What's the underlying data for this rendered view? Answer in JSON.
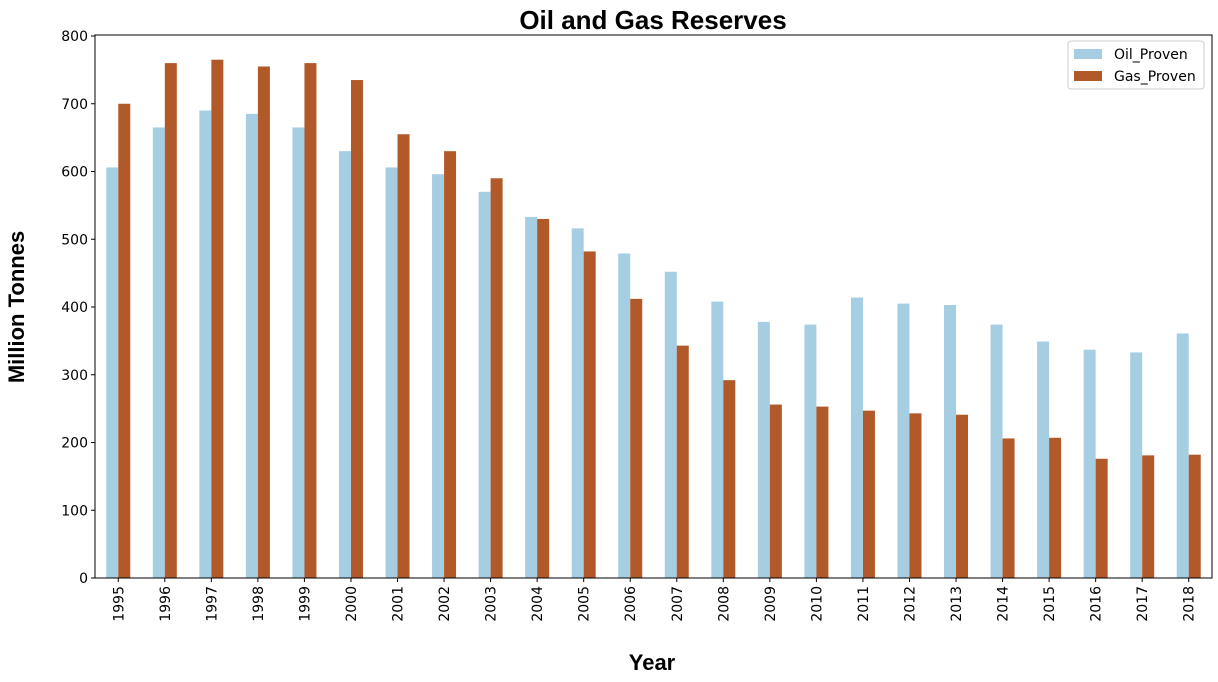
{
  "chart_data": {
    "type": "bar",
    "title": "Oil and Gas Reserves",
    "xlabel": "Year",
    "ylabel": "Million Tonnes",
    "ylim": [
      0,
      800
    ],
    "yticks": [
      0,
      100,
      200,
      300,
      400,
      500,
      600,
      700,
      800
    ],
    "grid": false,
    "legend_position": "top-right",
    "categories": [
      "1995",
      "1996",
      "1997",
      "1998",
      "1999",
      "2000",
      "2001",
      "2002",
      "2003",
      "2004",
      "2005",
      "2006",
      "2007",
      "2008",
      "2009",
      "2010",
      "2011",
      "2012",
      "2013",
      "2014",
      "2015",
      "2016",
      "2017",
      "2018"
    ],
    "series": [
      {
        "name": "Oil_Proven",
        "color": "#a6cee3",
        "values": [
          606,
          665,
          690,
          685,
          665,
          630,
          606,
          596,
          570,
          533,
          516,
          479,
          452,
          408,
          378,
          374,
          414,
          405,
          403,
          374,
          349,
          337,
          333,
          361
        ]
      },
      {
        "name": "Gas_Proven",
        "color": "#b15928",
        "values": [
          700,
          760,
          765,
          755,
          760,
          735,
          655,
          630,
          590,
          530,
          482,
          412,
          343,
          292,
          256,
          253,
          247,
          243,
          241,
          206,
          207,
          176,
          181,
          182
        ]
      }
    ]
  }
}
